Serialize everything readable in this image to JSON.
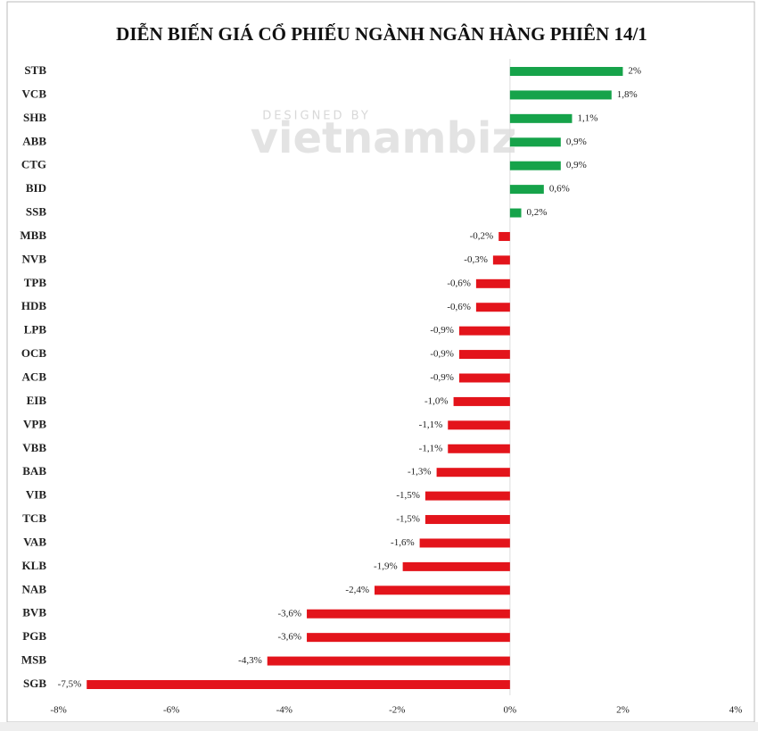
{
  "chart_data": {
    "type": "hbar",
    "title": "DIỄN BIẾN GIÁ CỔ PHIẾU NGÀNH NGÂN HÀNG PHIÊN 14/1",
    "annotations": [
      "DESIGNED BY",
      "vietnambiz"
    ],
    "categories": [
      "STB",
      "VCB",
      "SHB",
      "ABB",
      "CTG",
      "BID",
      "SSB",
      "MBB",
      "NVB",
      "TPB",
      "HDB",
      "LPB",
      "OCB",
      "ACB",
      "EIB",
      "VPB",
      "VBB",
      "BAB",
      "VIB",
      "TCB",
      "VAB",
      "KLB",
      "NAB",
      "BVB",
      "PGB",
      "MSB",
      "SGB"
    ],
    "values": [
      2,
      1.8,
      1.1,
      0.9,
      0.9,
      0.6,
      0.2,
      -0.2,
      -0.3,
      -0.6,
      -0.6,
      -0.9,
      -0.9,
      -0.9,
      -1.0,
      -1.1,
      -1.1,
      -1.3,
      -1.5,
      -1.5,
      -1.6,
      -1.9,
      -2.4,
      -3.6,
      -3.6,
      -4.3,
      -7.5
    ],
    "value_labels": [
      "2%",
      "1,8%",
      "1,1%",
      "0,9%",
      "0,9%",
      "0,6%",
      "0,2%",
      "-0,2%",
      "-0,3%",
      "-0,6%",
      "-0,6%",
      "-0,9%",
      "-0,9%",
      "-0,9%",
      "-1,0%",
      "-1,1%",
      "-1,1%",
      "-1,3%",
      "-1,5%",
      "-1,5%",
      "-1,6%",
      "-1,9%",
      "-2,4%",
      "-3,6%",
      "-3,6%",
      "-4,3%",
      "-7,5%"
    ],
    "positive_color": "#16a34a",
    "negative_color": "#e3141b",
    "xlim": [
      -8,
      4
    ],
    "xticks": [
      {
        "value": -8,
        "label": "-8%"
      },
      {
        "value": -6,
        "label": "-6%"
      },
      {
        "value": -4,
        "label": "-4%"
      },
      {
        "value": -2,
        "label": "-2%"
      },
      {
        "value": 0,
        "label": "0%"
      },
      {
        "value": 2,
        "label": "2%"
      },
      {
        "value": 4,
        "label": "4%"
      }
    ]
  }
}
